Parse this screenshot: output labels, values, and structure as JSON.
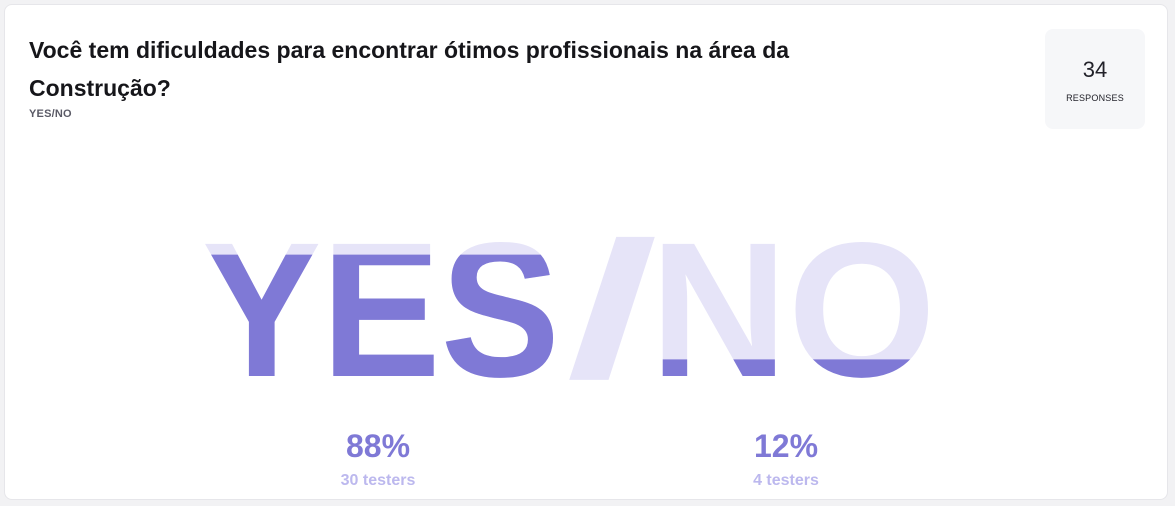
{
  "question": {
    "title": "Você tem dificuldades para encontrar ótimos profissionais na área da Construção?",
    "type": "YES/NO"
  },
  "responses": {
    "count": "34",
    "label": "RESPONSES"
  },
  "colors": {
    "yes_fill": "#7f79d6",
    "no_fill": "#e6e4f8",
    "testers_text": "#bcb8ee"
  },
  "chart_data": {
    "type": "bar",
    "categories": [
      "YES",
      "NO"
    ],
    "values": [
      88,
      12
    ],
    "unit": "%",
    "counts": [
      30,
      4
    ],
    "display": {
      "yes_percent": "88%",
      "no_percent": "12%",
      "yes_testers": "30 testers",
      "no_testers": "4 testers",
      "slash": "/"
    }
  }
}
